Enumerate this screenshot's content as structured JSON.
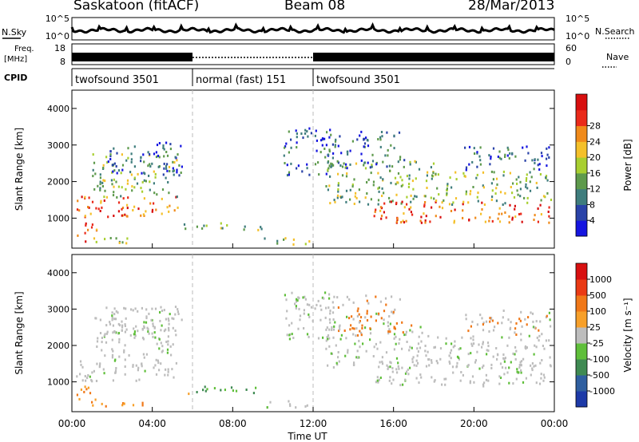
{
  "header": {
    "station": "Saskatoon (fitACF)",
    "beam": "Beam 08",
    "date": "28/Mar/2013"
  },
  "top_panel": {
    "left_label": "N.Sky",
    "left_ticks": [
      "10^5",
      "10^0"
    ],
    "right_ticks": [
      "10^5",
      "10^0"
    ],
    "right_label": "N.Search"
  },
  "freq_panel": {
    "left_label_line1": "Freq.",
    "left_label_line2": "[MHz]",
    "left_ticks": [
      "18",
      "8"
    ],
    "right_ticks": [
      "60",
      "0"
    ],
    "right_label": "Nave"
  },
  "cpid": {
    "label": "CPID",
    "segments": [
      {
        "name": "twofsound 3501",
        "start_hour": 0,
        "end_hour": 6
      },
      {
        "name": "normal (fast) 151",
        "start_hour": 6,
        "end_hour": 12
      },
      {
        "name": "twofsound 3501",
        "start_hour": 12,
        "end_hour": 24
      }
    ]
  },
  "chart_data": [
    {
      "type": "heatmap",
      "variable": "power",
      "ylabel": "Slant Range [km]",
      "ylim": [
        180,
        4500
      ],
      "yticks": [
        1000,
        2000,
        3000,
        4000
      ],
      "xlim": [
        0,
        24
      ],
      "colorbar": {
        "label": "Power [dB]",
        "ticks": [
          "4",
          "8",
          "12",
          "16",
          "20",
          "24",
          "28"
        ],
        "colors": [
          "#1515e0",
          "#2a43a8",
          "#3f7d7d",
          "#5e9a4c",
          "#a8cf30",
          "#f4c02a",
          "#f08a1a",
          "#ea2a1a",
          "#d80f0f"
        ]
      }
    },
    {
      "type": "heatmap",
      "variable": "velocity",
      "ylabel": "Slant Range [km]",
      "ylim": [
        180,
        4500
      ],
      "yticks": [
        1000,
        2000,
        3000,
        4000
      ],
      "xlim": [
        0,
        24
      ],
      "xticks": [
        "00:00",
        "04:00",
        "08:00",
        "12:00",
        "16:00",
        "20:00",
        "00:00"
      ],
      "xlabel": "Time UT",
      "colorbar": {
        "label": "Velocity [m s⁻¹]",
        "ticks": [
          "1000",
          "500",
          "100",
          "25",
          "-25",
          "-100",
          "-500",
          "-1000"
        ],
        "colors": [
          "#1d3aa8",
          "#2f5fa0",
          "#3f8a52",
          "#5fbf3a",
          "#bdbdbd",
          "#f7a02a",
          "#f07818",
          "#ea3a14",
          "#d81010"
        ]
      }
    }
  ]
}
